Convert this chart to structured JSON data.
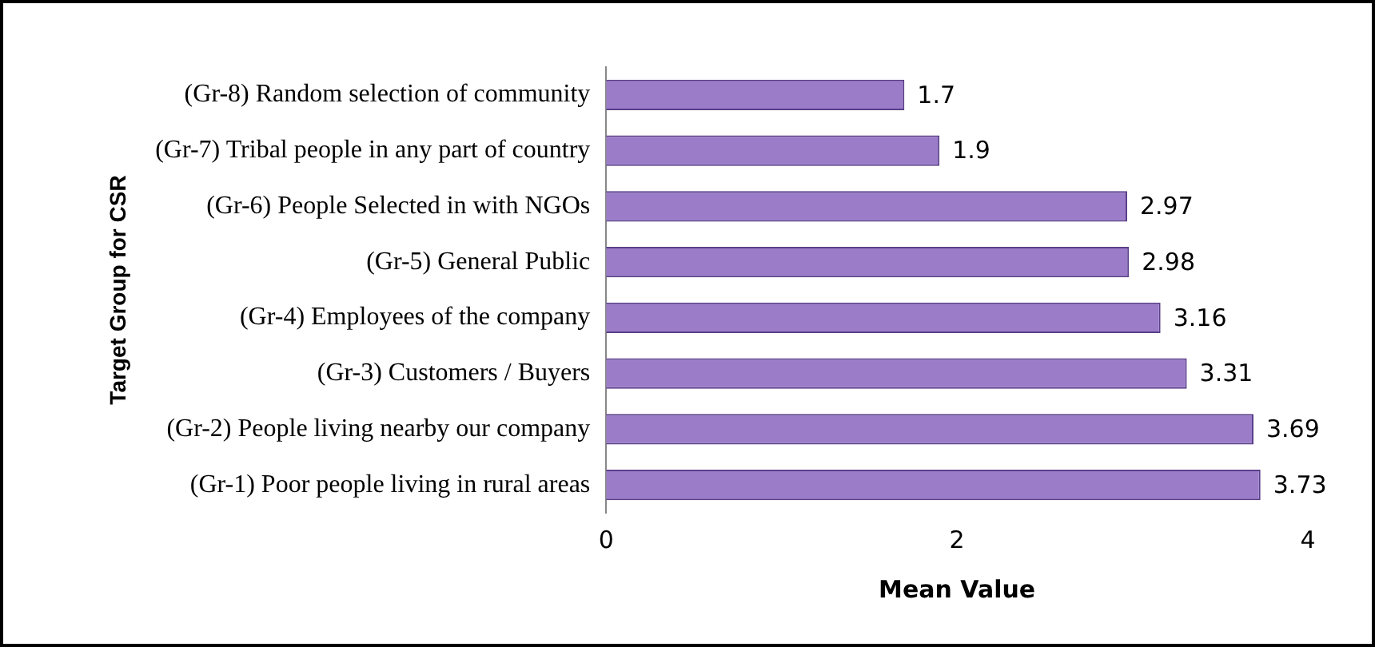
{
  "chart_data": {
    "type": "bar",
    "orientation": "horizontal",
    "xlabel": "Mean Value",
    "ylabel": "Target Group for CSR",
    "categories": [
      "(Gr-8) Random selection of community",
      "(Gr-7) Tribal people in any part of country",
      "(Gr-6) People Selected in with NGOs",
      "(Gr-5) General Public",
      "(Gr-4) Employees of the company",
      "(Gr-3) Customers / Buyers",
      "(Gr-2) People living nearby our company",
      "(Gr-1) Poor people living in rural areas"
    ],
    "values": [
      1.7,
      1.9,
      2.97,
      2.98,
      3.16,
      3.31,
      3.69,
      3.73
    ],
    "color": "#9a7cc9",
    "xlim": [
      0,
      4
    ],
    "xticks": [
      0,
      2,
      4
    ],
    "data_labels": true,
    "grid": false,
    "legend": false
  }
}
